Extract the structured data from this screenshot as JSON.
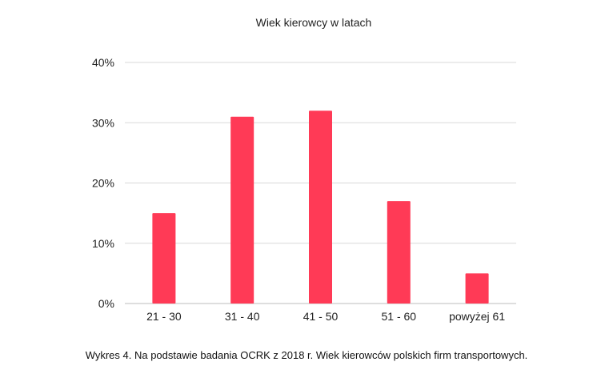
{
  "chart_data": {
    "type": "bar",
    "title": "Wiek kierowcy w latach",
    "xlabel": "",
    "ylabel": "",
    "categories": [
      "21 - 30",
      "31 - 40",
      "41 - 50",
      "51 - 60",
      "powyżej 61"
    ],
    "values": [
      15,
      31,
      32,
      17,
      5
    ],
    "value_unit": "%",
    "ylim": [
      0,
      40
    ],
    "yticks": [
      "0%",
      "10%",
      "20%",
      "30%",
      "40%"
    ],
    "ytick_values": [
      0,
      10,
      20,
      30,
      40
    ],
    "grid": true,
    "legend": "none",
    "colors": {
      "bar": "#ff3a56",
      "grid": "#d9d9d9",
      "text": "#222222"
    }
  },
  "caption": "Wykres 4. Na podstawie badania OCRK z 2018 r. Wiek kierowców polskich firm transportowych."
}
